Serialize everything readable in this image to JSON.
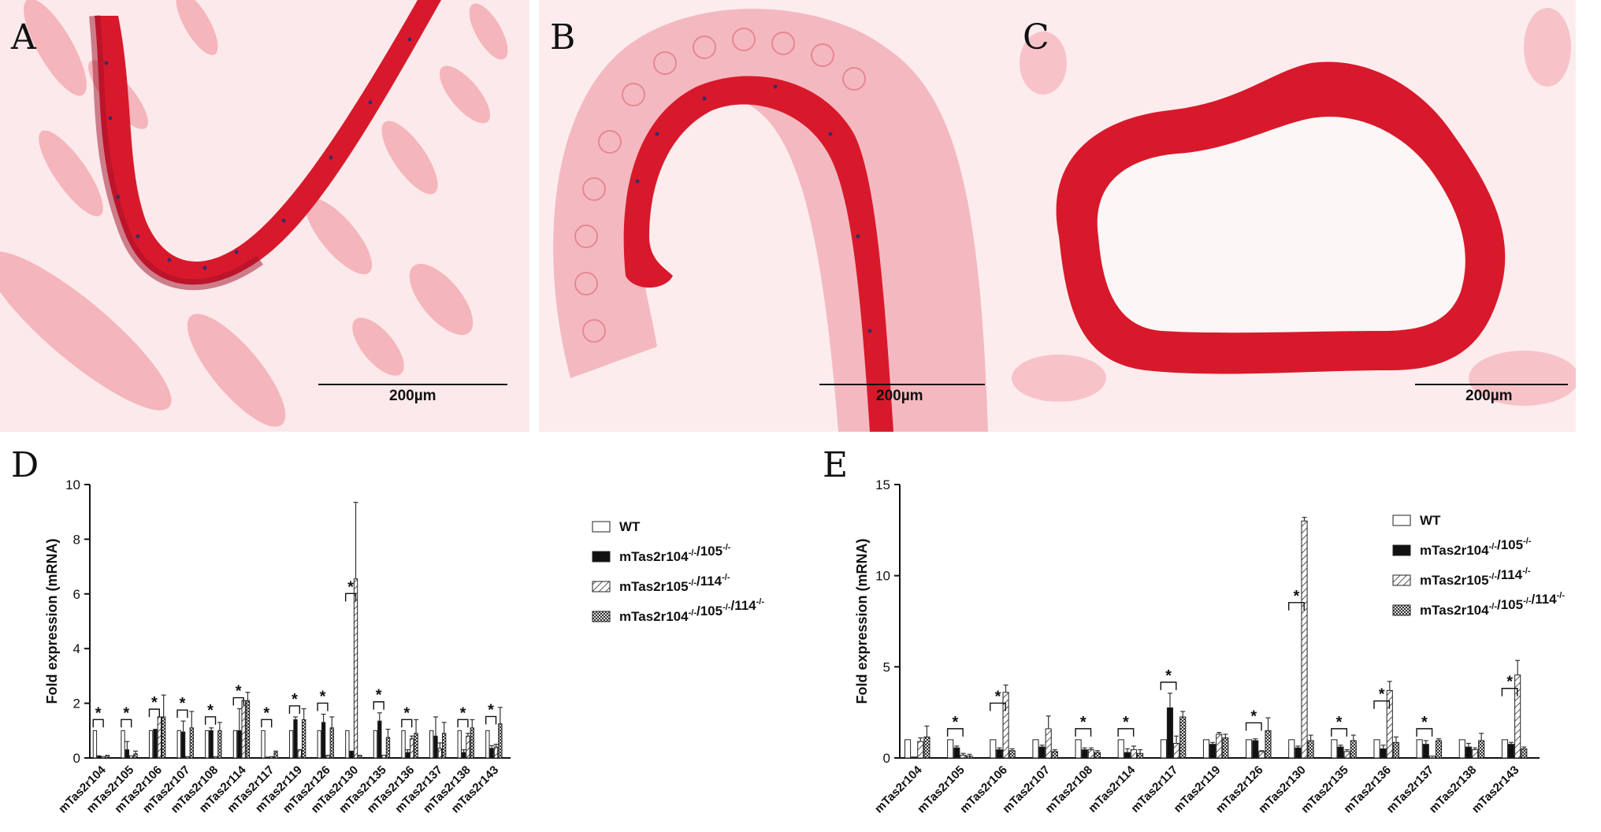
{
  "panels": {
    "A": {
      "letter": "A",
      "scale_label": "200µm"
    },
    "B": {
      "letter": "B",
      "scale_label": "200µm"
    },
    "C": {
      "letter": "C",
      "scale_label": "200µm"
    },
    "D": {
      "letter": "D"
    },
    "E": {
      "letter": "E"
    }
  },
  "colors": {
    "stain": "#e0202e",
    "stain_light": "#f2a0a8",
    "bar_fill_wt": "#ffffff",
    "bar_fill_ko": "#111111"
  },
  "chart_data": [
    {
      "id": "D",
      "type": "bar",
      "ylabel": "Fold expression (mRNA)",
      "ylim": [
        0,
        10
      ],
      "yticks": [
        0,
        2,
        4,
        6,
        8,
        10
      ],
      "categories": [
        "mTas2r104",
        "mTas2r105",
        "mTas2r106",
        "mTas2r107",
        "mTas2r108",
        "mTas2r114",
        "mTas2r117",
        "mTas2r119",
        "mTas2r126",
        "mTas2r130",
        "mTas2r135",
        "mTas2r136",
        "mTas2r137",
        "mTas2r138",
        "mTas2r143"
      ],
      "legend_position": "right",
      "series": [
        {
          "name": "WT",
          "sup": "",
          "pattern": "white",
          "values": [
            1,
            1,
            1,
            1,
            1,
            1,
            1,
            1,
            1,
            1,
            1,
            1,
            1,
            1,
            1
          ],
          "errors": [
            0,
            0,
            0,
            0,
            0,
            0,
            0,
            0,
            0,
            0,
            0,
            0,
            0,
            0,
            0
          ]
        },
        {
          "name": "mTas2r104",
          "sup": "-/-",
          "name2": "/105",
          "sup2": "-/-",
          "pattern": "black",
          "values": [
            0.08,
            0.3,
            1.05,
            0.95,
            1.0,
            1.0,
            0.03,
            1.4,
            1.3,
            0.25,
            1.35,
            0.2,
            0.8,
            0.2,
            0.35
          ],
          "errors": [
            0,
            0.3,
            0,
            0.4,
            0.1,
            0.8,
            0,
            0.1,
            0.3,
            0,
            0.3,
            0.1,
            0.7,
            0.1,
            0.1
          ]
        },
        {
          "name": "mTas2r105",
          "sup": "-/-",
          "name2": "/114",
          "sup2": "-/-",
          "pattern": "hatch",
          "values": [
            0.05,
            0.08,
            1.5,
            0.05,
            0.05,
            2.1,
            0.05,
            0.3,
            0.1,
            6.55,
            0.1,
            0.7,
            0.35,
            0.8,
            0.4
          ],
          "errors": [
            0,
            0,
            0,
            0,
            0,
            0,
            0,
            0,
            0,
            2.8,
            0,
            0.1,
            0.2,
            0.1,
            0.1
          ]
        },
        {
          "name": "mTas2r104",
          "sup": "-/-",
          "name2": "/105",
          "sup2": "-/-",
          "name3": "/114",
          "sup3": "-/-",
          "pattern": "checker",
          "values": [
            0.1,
            0.15,
            1.5,
            1.1,
            1.0,
            2.1,
            0.2,
            1.4,
            1.1,
            0.1,
            0.75,
            0.9,
            0.9,
            1.1,
            1.25
          ],
          "errors": [
            0,
            0.1,
            0.8,
            0.6,
            0.3,
            0.3,
            0.05,
            0.4,
            0.4,
            0,
            0.3,
            0.5,
            0.4,
            0.3,
            0.6
          ]
        }
      ],
      "significance": [
        0,
        1,
        2,
        3,
        4,
        5,
        6,
        7,
        8,
        9,
        10,
        11,
        13,
        14
      ]
    },
    {
      "id": "E",
      "type": "bar",
      "ylabel": "Fold expression (mRNA)",
      "ylim": [
        0,
        15
      ],
      "yticks": [
        0,
        5,
        10,
        15
      ],
      "categories": [
        "mTas2r104",
        "mTas2r105",
        "mTas2r106",
        "mTas2r107",
        "mTas2r108",
        "mTas2r114",
        "mTas2r117",
        "mTas2r119",
        "mTas2r126",
        "mTas2r130",
        "mTas2r135",
        "mTas2r136",
        "mTas2r137",
        "mTas2r138",
        "mTas2r143"
      ],
      "legend_position": "right",
      "series": [
        {
          "name": "WT",
          "sup": "",
          "pattern": "white",
          "values": [
            1,
            1,
            1,
            1,
            1,
            1,
            1,
            1,
            1,
            1,
            1,
            1,
            1,
            1,
            1
          ],
          "errors": [
            0,
            0,
            0,
            0,
            0,
            0,
            0,
            0,
            0,
            0,
            0,
            0,
            0,
            0,
            0
          ]
        },
        {
          "name": "mTas2r104",
          "sup": "-/-",
          "name2": "/105",
          "sup2": "-/-",
          "pattern": "black",
          "values": [
            0.05,
            0.55,
            0.45,
            0.6,
            0.45,
            0.3,
            2.75,
            0.75,
            0.95,
            0.55,
            0.6,
            0.5,
            0.75,
            0.6,
            0.75
          ],
          "errors": [
            0,
            0.1,
            0.1,
            0.1,
            0.1,
            0.2,
            0.8,
            0.1,
            0.1,
            0.1,
            0.1,
            0.2,
            0.2,
            0.2,
            0.1
          ]
        },
        {
          "name": "mTas2r105",
          "sup": "-/-",
          "name2": "/114",
          "sup2": "-/-",
          "pattern": "hatch",
          "values": [
            0.9,
            0.15,
            3.6,
            1.6,
            0.45,
            0.45,
            0.8,
            1.3,
            0.35,
            13.0,
            0.35,
            3.7,
            0.1,
            0.45,
            4.55
          ],
          "errors": [
            0.2,
            0.1,
            0.4,
            0.7,
            0.1,
            0.2,
            0.4,
            0.1,
            0.05,
            0.2,
            0.1,
            0.5,
            0,
            0.1,
            0.8
          ]
        },
        {
          "name": "mTas2r104",
          "sup": "-/-",
          "name2": "/105",
          "sup2": "-/-",
          "name3": "/114",
          "sup3": "-/-",
          "pattern": "checker",
          "values": [
            1.15,
            0.1,
            0.4,
            0.35,
            0.3,
            0.25,
            2.25,
            1.1,
            1.5,
            0.95,
            0.95,
            0.85,
            0.95,
            0.95,
            0.5
          ],
          "errors": [
            0.6,
            0.1,
            0.1,
            0.1,
            0.1,
            0.2,
            0.3,
            0.2,
            0.7,
            0.3,
            0.3,
            0.3,
            0.1,
            0.4,
            0.1
          ]
        }
      ],
      "significance": [
        1,
        2,
        4,
        5,
        6,
        8,
        9,
        10,
        11,
        12,
        14
      ]
    }
  ]
}
